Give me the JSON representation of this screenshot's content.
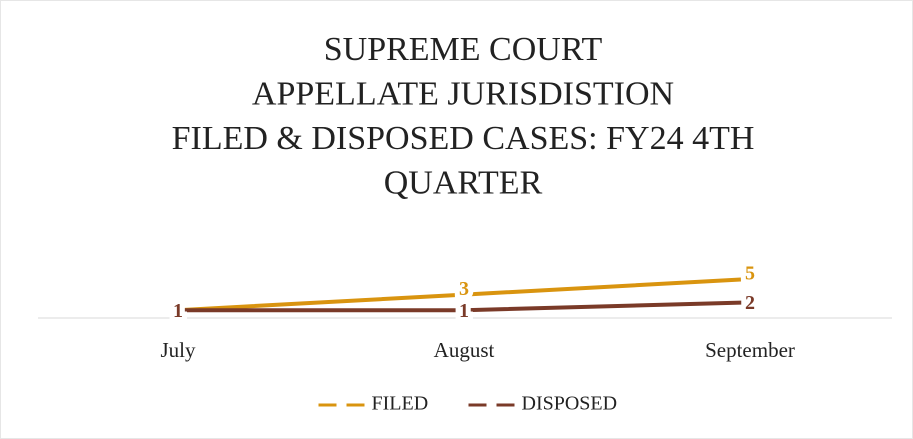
{
  "chart_data": {
    "type": "line",
    "title": [
      "SUPREME COURT",
      "APPELLATE JURISDISTION",
      "FILED & DISPOSED CASES: FY24 4TH",
      "QUARTER"
    ],
    "categories": [
      "July",
      "August",
      "September"
    ],
    "series": [
      {
        "name": "FILED",
        "color": "#d9940f",
        "values": [
          1,
          3,
          5
        ]
      },
      {
        "name": "DISPOSED",
        "color": "#7a3a28",
        "values": [
          1,
          1,
          2
        ]
      }
    ],
    "ylim": [
      0,
      10
    ],
    "legend": "bottom",
    "data_labels": true
  }
}
